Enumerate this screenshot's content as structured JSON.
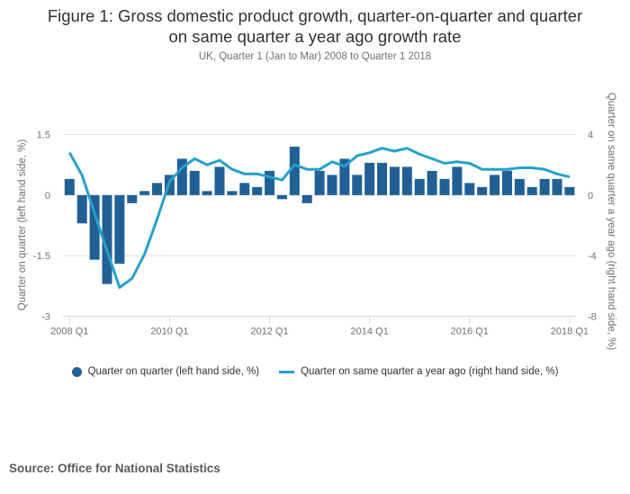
{
  "title_line1": "Figure 1: Gross domestic product growth, quarter-on-quarter and quarter",
  "title_line2": "on same quarter a year ago growth rate",
  "subtitle": "UK, Quarter 1 (Jan to Mar) 2008 to Quarter 1 2018",
  "source": "Source: Office for National Statistics",
  "colors": {
    "bars": "#206095",
    "line": "#27a0cc",
    "grid": "#e0e0e0",
    "axis": "#ccd6eb"
  },
  "legend": [
    {
      "label": "Quarter on quarter (left hand side, %)",
      "marker": "circle"
    },
    {
      "label": "Quarter on same quarter a year ago (right hand side, %)",
      "marker": "line"
    }
  ],
  "chart_data": {
    "type": "bar+line",
    "title": "Figure 1: Gross domestic product growth, quarter-on-quarter and quarter on same quarter a year ago growth rate",
    "subtitle": "UK, Quarter 1 (Jan to Mar) 2008 to Quarter 1 2018",
    "x_tick_labels": [
      "2008 Q1",
      "2010 Q1",
      "2012 Q1",
      "2014 Q1",
      "2016 Q1",
      "2018 Q1"
    ],
    "x_tick_every": 8,
    "categories": [
      "2008 Q1",
      "2008 Q2",
      "2008 Q3",
      "2008 Q4",
      "2009 Q1",
      "2009 Q2",
      "2009 Q3",
      "2009 Q4",
      "2010 Q1",
      "2010 Q2",
      "2010 Q3",
      "2010 Q4",
      "2011 Q1",
      "2011 Q2",
      "2011 Q3",
      "2011 Q4",
      "2012 Q1",
      "2012 Q2",
      "2012 Q3",
      "2012 Q4",
      "2013 Q1",
      "2013 Q2",
      "2013 Q3",
      "2013 Q4",
      "2014 Q1",
      "2014 Q2",
      "2014 Q3",
      "2014 Q4",
      "2015 Q1",
      "2015 Q2",
      "2015 Q3",
      "2015 Q4",
      "2016 Q1",
      "2016 Q2",
      "2016 Q3",
      "2016 Q4",
      "2017 Q1",
      "2017 Q2",
      "2017 Q3",
      "2017 Q4",
      "2018 Q1"
    ],
    "left_axis": {
      "title": "Quarter on quarter (left hand side, %)",
      "range": [
        -3,
        1.5
      ],
      "ticks": [
        1.5,
        0,
        -1.5,
        -3
      ],
      "tick_labels": [
        "1.5",
        "0",
        "-1.5",
        "-3"
      ]
    },
    "right_axis": {
      "title": "Quarter on same quarter a year ago (right hand side, %)",
      "range": [
        -8,
        4
      ],
      "ticks": [
        4,
        0,
        -4,
        -8
      ],
      "tick_labels": [
        "4",
        "0",
        "-4",
        "-8"
      ]
    },
    "grid": true,
    "legend_position": "bottom",
    "series": [
      {
        "name": "Quarter on quarter (left hand side, %)",
        "type": "bar",
        "axis": "left",
        "values": [
          0.4,
          -0.7,
          -1.6,
          -2.2,
          -1.7,
          -0.2,
          0.1,
          0.3,
          0.5,
          0.9,
          0.6,
          0.1,
          0.7,
          0.1,
          0.3,
          0.2,
          0.6,
          -0.1,
          1.2,
          -0.2,
          0.6,
          0.5,
          0.9,
          0.5,
          0.8,
          0.8,
          0.7,
          0.7,
          0.4,
          0.6,
          0.4,
          0.7,
          0.3,
          0.2,
          0.5,
          0.6,
          0.4,
          0.2,
          0.4,
          0.4,
          0.2
        ]
      },
      {
        "name": "Quarter on same quarter a year ago (right hand side, %)",
        "type": "line",
        "axis": "right",
        "values": [
          2.8,
          1.3,
          -1.2,
          -3.7,
          -6.1,
          -5.5,
          -3.9,
          -1.6,
          0.9,
          1.8,
          2.4,
          2.0,
          2.3,
          1.7,
          1.4,
          1.4,
          1.2,
          1.0,
          2.0,
          1.7,
          1.7,
          2.2,
          1.9,
          2.6,
          2.8,
          3.1,
          2.9,
          3.1,
          2.7,
          2.4,
          2.1,
          2.2,
          2.1,
          1.7,
          1.7,
          1.7,
          1.8,
          1.8,
          1.7,
          1.4,
          1.2
        ]
      }
    ]
  }
}
